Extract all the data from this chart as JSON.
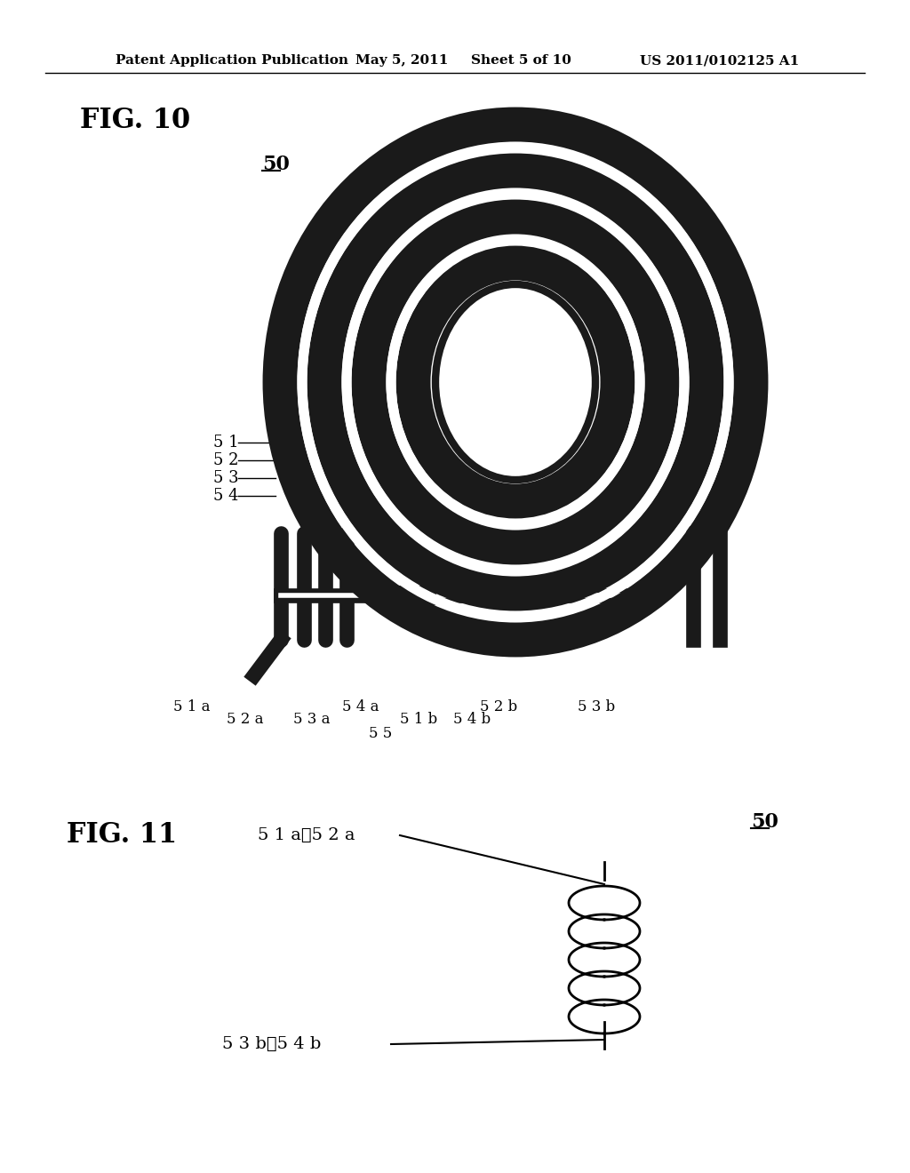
{
  "background_color": "#ffffff",
  "header_text": "Patent Application Publication",
  "header_date": "May 5, 2011",
  "header_sheet": "Sheet 5 of 10",
  "header_patent": "US 2011/0102125 A1",
  "fig10_label": "FIG. 10",
  "fig10_ref": "50",
  "fig11_label": "FIG. 11",
  "fig11_ref": "50",
  "text_color": "#000000",
  "coil_dark": "#1a1a1a",
  "coil_light": "#ffffff",
  "coil_gray": "#888888"
}
